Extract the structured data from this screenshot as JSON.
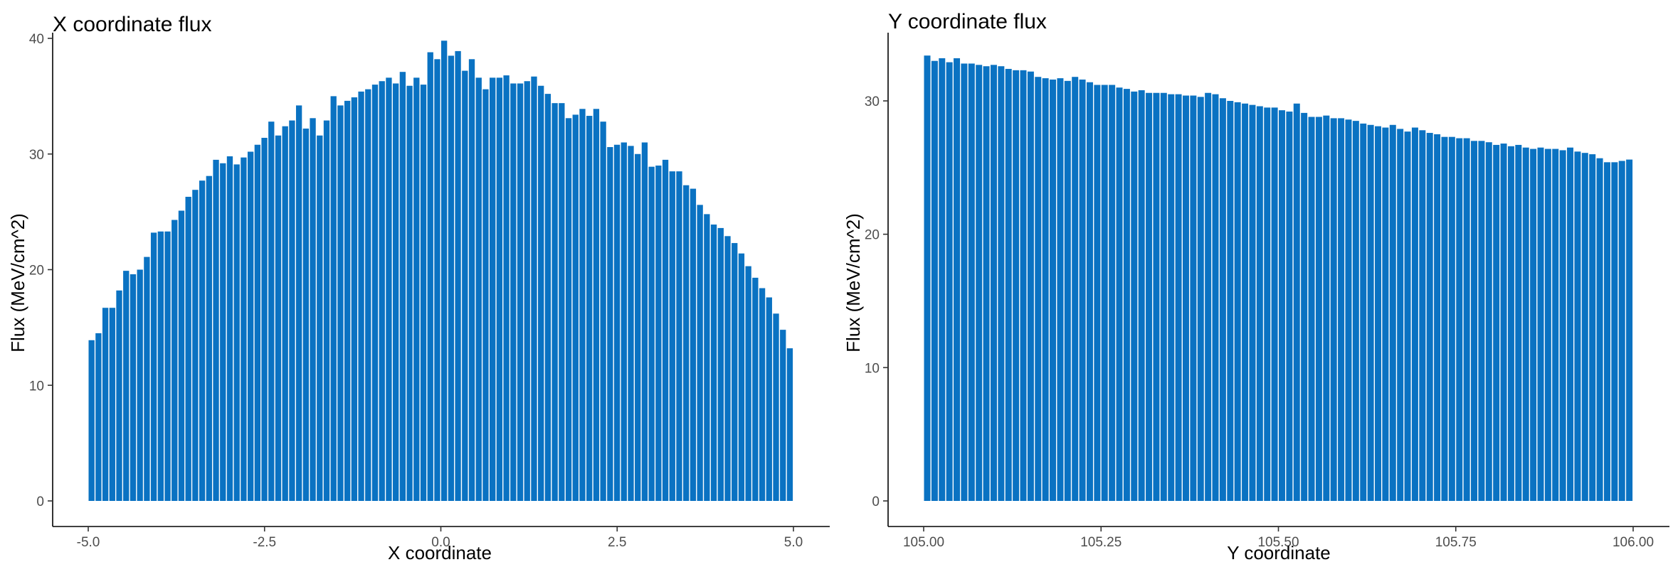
{
  "chart_data": [
    {
      "type": "bar",
      "title": "X coordinate flux",
      "xlabel": "X coordinate",
      "ylabel": "Flux (MeV/cm^2)",
      "xlim": [
        -5.0,
        5.0
      ],
      "ylim": [
        0,
        40
      ],
      "x_ticks": [
        -5.0,
        -2.5,
        0.0,
        2.5,
        5.0
      ],
      "x_tick_labels": [
        "-5.0",
        "-2.5",
        "0.0",
        "2.5",
        "5.0"
      ],
      "y_ticks": [
        0,
        10,
        20,
        30,
        40
      ],
      "y_tick_labels": [
        "0",
        "10",
        "20",
        "30",
        "40"
      ],
      "grid": false,
      "bar_color": "#0a72c2",
      "series": [
        {
          "values": [
            13.9,
            14.5,
            16.7,
            16.7,
            18.2,
            19.9,
            19.6,
            20.0,
            21.1,
            23.2,
            23.3,
            23.3,
            24.3,
            25.1,
            26.3,
            26.9,
            27.7,
            28.1,
            29.5,
            29.2,
            29.8,
            29.1,
            29.7,
            30.2,
            30.8,
            31.4,
            32.8,
            31.6,
            32.4,
            32.9,
            34.2,
            32.2,
            33.1,
            31.6,
            32.9,
            35.0,
            34.2,
            34.6,
            34.9,
            35.4,
            35.6,
            36.0,
            36.3,
            36.6,
            36.1,
            37.1,
            35.9,
            36.6,
            36.0,
            38.8,
            38.2,
            39.8,
            38.5,
            38.9,
            37.2,
            38.2,
            36.6,
            35.6,
            36.6,
            36.6,
            36.8,
            36.1,
            36.1,
            36.3,
            36.7,
            35.9,
            35.2,
            34.4,
            34.4,
            33.1,
            33.4,
            33.9,
            33.3,
            33.9,
            32.8,
            30.6,
            30.8,
            31.0,
            30.7,
            30.0,
            31.0,
            28.9,
            29.0,
            29.5,
            28.5,
            28.5,
            27.3,
            27.0,
            25.6,
            24.8,
            23.9,
            23.6,
            22.9,
            22.3,
            21.4,
            20.3,
            19.3,
            18.4,
            17.6,
            16.2,
            14.8,
            13.2
          ]
        }
      ]
    },
    {
      "type": "bar",
      "title": "Y coordinate flux",
      "xlabel": "Y coordinate",
      "ylabel": "Flux (MeV/cm^2)",
      "xlim": [
        105.0,
        106.0
      ],
      "ylim": [
        0,
        33
      ],
      "x_ticks": [
        105.0,
        105.25,
        105.5,
        105.75,
        106.0
      ],
      "x_tick_labels": [
        "105.00",
        "105.25",
        "105.50",
        "105.75",
        "106.00"
      ],
      "y_ticks": [
        0,
        10,
        20,
        30
      ],
      "y_tick_labels": [
        "0",
        "10",
        "20",
        "30"
      ],
      "grid": false,
      "bar_color": "#0a72c2",
      "series": [
        {
          "values": [
            33.4,
            33.0,
            33.2,
            32.9,
            33.2,
            32.8,
            32.8,
            32.7,
            32.6,
            32.7,
            32.6,
            32.4,
            32.3,
            32.3,
            32.2,
            31.8,
            31.7,
            31.6,
            31.7,
            31.5,
            31.8,
            31.6,
            31.4,
            31.2,
            31.2,
            31.2,
            31.0,
            30.9,
            30.7,
            30.8,
            30.6,
            30.6,
            30.6,
            30.5,
            30.5,
            30.4,
            30.4,
            30.3,
            30.6,
            30.5,
            30.2,
            30.0,
            29.9,
            29.8,
            29.7,
            29.6,
            29.5,
            29.5,
            29.3,
            29.2,
            29.8,
            29.1,
            28.8,
            28.8,
            28.9,
            28.7,
            28.7,
            28.6,
            28.5,
            28.3,
            28.2,
            28.1,
            28.0,
            28.2,
            27.9,
            27.7,
            28.0,
            27.8,
            27.6,
            27.5,
            27.3,
            27.3,
            27.2,
            27.2,
            27.0,
            27.0,
            26.9,
            26.7,
            26.8,
            26.6,
            26.7,
            26.5,
            26.4,
            26.5,
            26.4,
            26.4,
            26.3,
            26.5,
            26.2,
            26.1,
            26.0,
            25.7,
            25.4,
            25.4,
            25.5,
            25.6
          ]
        }
      ]
    }
  ]
}
